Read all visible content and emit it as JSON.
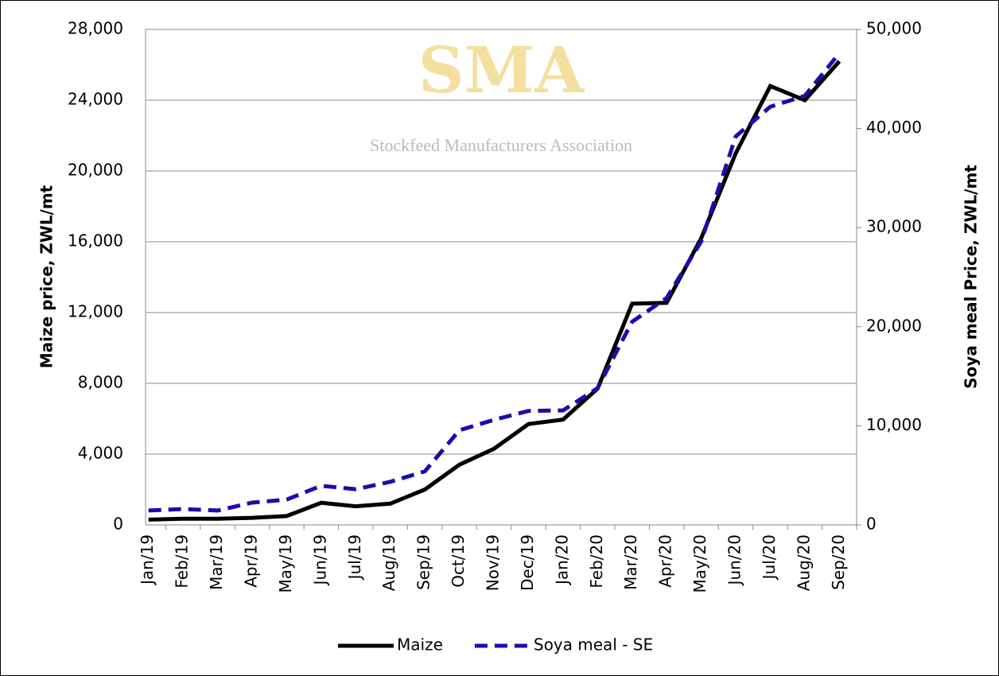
{
  "chart_data": {
    "type": "line",
    "watermark_text": [
      "SMA",
      "Stockfeed Manufacturers Association"
    ],
    "y_label": "Maize price, ZWL/mt",
    "y2_label": "Soya meal Price, ZWL/mt",
    "categories": [
      "Jan/19",
      "Feb/19",
      "Mar/19",
      "Apr/19",
      "May/19",
      "Jun/19",
      "Jul/19",
      "Aug/19",
      "Sep/19",
      "Oct/19",
      "Nov/19",
      "Dec/19",
      "Jan/20",
      "Feb/20",
      "Mar/20",
      "Apr/20",
      "May/20",
      "Jun/20",
      "Jul/20",
      "Aug/20",
      "Sep/20"
    ],
    "series": [
      {
        "name": "Maize",
        "color": "#000000",
        "dash": "solid",
        "axis": "y",
        "values": [
          300,
          350,
          350,
          400,
          500,
          1250,
          1050,
          1200,
          2000,
          3400,
          4300,
          5700,
          5950,
          7700,
          12500,
          12550,
          16200,
          21000,
          24800,
          24000,
          26200
        ]
      },
      {
        "name": "Soya meal - SE",
        "color": "#1a0dab",
        "dash": "dashed",
        "axis": "y2",
        "values": [
          1450,
          1600,
          1450,
          2250,
          2550,
          3950,
          3600,
          4350,
          5400,
          9550,
          10600,
          11500,
          11550,
          13800,
          20500,
          22900,
          28600,
          39200,
          42200,
          43300,
          47600
        ]
      }
    ],
    "ylim": [
      0,
      28000
    ],
    "yticks": [
      0,
      {
        "value": 4000,
        "label": "4,000"
      },
      {
        "value": 8000,
        "label": "8,000"
      },
      {
        "value": 12000,
        "label": "12,000"
      },
      {
        "value": 16000,
        "label": "16,000"
      },
      {
        "value": 20000,
        "label": "20,000"
      },
      {
        "value": 24000,
        "label": "24,000"
      },
      {
        "value": 28000,
        "label": "28,000"
      }
    ],
    "y2lim": [
      0,
      50000
    ],
    "y2ticks": [
      0,
      {
        "value": 10000,
        "label": "10,000"
      },
      {
        "value": 20000,
        "label": "20,000"
      },
      {
        "value": 30000,
        "label": "30,000"
      },
      {
        "value": 40000,
        "label": "40,000"
      },
      {
        "value": 50000,
        "label": "50,000"
      }
    ],
    "grid": true,
    "legend": "bottom"
  }
}
